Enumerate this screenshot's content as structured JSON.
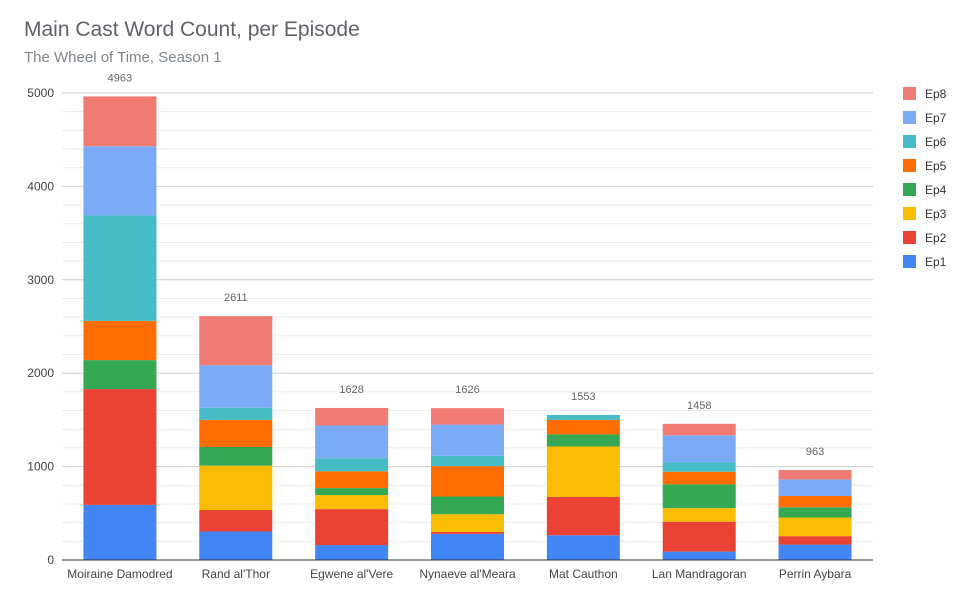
{
  "title": "Main Cast Word Count, per Episode",
  "subtitle": "The Wheel of Time, Season 1",
  "chart_data": {
    "type": "bar",
    "stacked": true,
    "categories": [
      "Moiraine Damodred",
      "Rand al'Thor",
      "Egwene al'Vere",
      "Nynaeve al'Meara",
      "Mat Cauthon",
      "Lan Mandragoran",
      "Perrin Aybara"
    ],
    "totals": [
      4963,
      2611,
      1628,
      1626,
      1553,
      1458,
      963
    ],
    "total_labels": [
      "4963",
      "2611",
      "1628",
      "1626",
      "1553",
      "1458",
      "963"
    ],
    "yticks": [
      0,
      1000,
      2000,
      3000,
      4000,
      5000
    ],
    "ytick_labels": [
      "0",
      "1000",
      "2000",
      "3000",
      "4000",
      "5000"
    ],
    "ylim": [
      0,
      5000
    ],
    "legend_position": "right",
    "grid": true,
    "series": [
      {
        "name": "Ep1",
        "color": "#4285f4",
        "values": [
          590,
          305,
          160,
          280,
          265,
          90,
          165
        ]
      },
      {
        "name": "Ep2",
        "color": "#ea4335",
        "values": [
          1240,
          230,
          385,
          20,
          410,
          320,
          90
        ]
      },
      {
        "name": "Ep3",
        "color": "#fbbc04",
        "values": [
          0,
          475,
          150,
          190,
          540,
          145,
          200
        ]
      },
      {
        "name": "Ep4",
        "color": "#34a853",
        "values": [
          310,
          200,
          75,
          190,
          130,
          255,
          110
        ]
      },
      {
        "name": "Ep5",
        "color": "#ff6d01",
        "values": [
          420,
          290,
          180,
          325,
          155,
          135,
          120
        ]
      },
      {
        "name": "Ep6",
        "color": "#46bdc6",
        "values": [
          1130,
          130,
          140,
          110,
          53,
          100,
          0
        ]
      },
      {
        "name": "Ep7",
        "color": "#7baaf7",
        "values": [
          740,
          455,
          350,
          335,
          0,
          290,
          178
        ]
      },
      {
        "name": "Ep8",
        "color": "#f07b72",
        "values": [
          533,
          526,
          188,
          176,
          0,
          123,
          100
        ]
      }
    ]
  }
}
